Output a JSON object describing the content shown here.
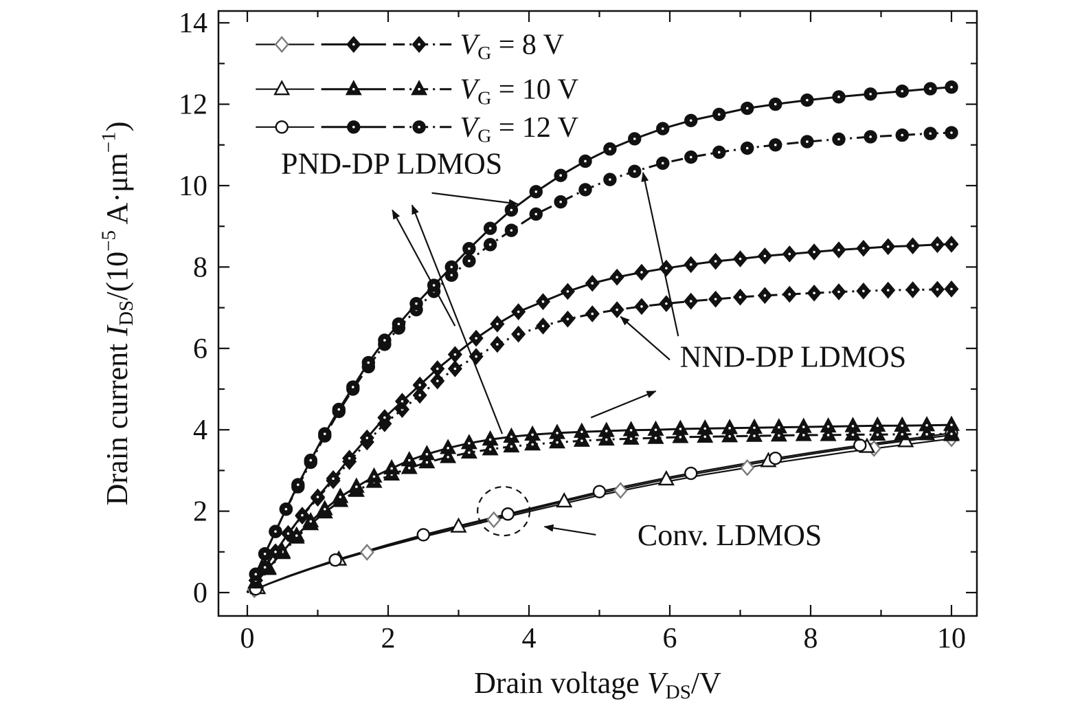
{
  "chart_data": {
    "type": "line",
    "title": "",
    "xlabel": "Drain voltage VDS/V",
    "ylabel": "Drain current IDS/(10^-5 A·um^-1)",
    "xlabel_rich": [
      {
        "t": "Drain voltage "
      },
      {
        "t": "V",
        "i": 1
      },
      {
        "t": "DS",
        "sub": 1
      },
      {
        "t": "/V"
      }
    ],
    "ylabel_rich": [
      {
        "t": "Drain current "
      },
      {
        "t": "I",
        "i": 1
      },
      {
        "t": "DS",
        "sub": 1
      },
      {
        "t": "/(10"
      },
      {
        "t": "−5",
        "sup": 1
      },
      {
        "t": " A·μm"
      },
      {
        "t": "−1",
        "sup": 1
      },
      {
        "t": ")"
      }
    ],
    "xlim": [
      0,
      10
    ],
    "ylim": [
      0,
      14
    ],
    "grid": false,
    "xticks": {
      "major": [
        0,
        2,
        4,
        6,
        8,
        10
      ],
      "minor": [
        1,
        3,
        5,
        7,
        9
      ]
    },
    "yticks": {
      "major": [
        0,
        2,
        4,
        6,
        8,
        10,
        12,
        14
      ],
      "minor": [
        1,
        3,
        5,
        7,
        9,
        11,
        13
      ]
    },
    "colors": {
      "curve": "#111111",
      "conv_diamond_open": "#7a7a7a",
      "background": "#ffffff"
    },
    "legend": {
      "position": "top-left",
      "rows": [
        {
          "marker": "diamond",
          "vg": 8,
          "open_color": "#7a7a7a",
          "label": [
            {
              "t": "V",
              "i": 1
            },
            {
              "t": "G",
              "sub": 1
            },
            {
              "t": " = 8 V"
            }
          ]
        },
        {
          "marker": "triangle",
          "vg": 10,
          "open_color": "#111111",
          "label": [
            {
              "t": "V",
              "i": 1
            },
            {
              "t": "G",
              "sub": 1
            },
            {
              "t": " = 10 V"
            }
          ]
        },
        {
          "marker": "circle",
          "vg": 12,
          "open_color": "#111111",
          "label": [
            {
              "t": "V",
              "i": 1
            },
            {
              "t": "G",
              "sub": 1
            },
            {
              "t": " = 12 V"
            }
          ]
        }
      ]
    },
    "series": [
      {
        "id": "conv-vg8",
        "device": "Conv. LDMOS",
        "vg": 8,
        "line": "thin",
        "marker": "diamond",
        "marker_fill": "open",
        "color": "#7a7a7a",
        "x": [
          0,
          0.3,
          0.6,
          0.9,
          1.25,
          1.6,
          2,
          2.5,
          3,
          3.5,
          4,
          4.5,
          5,
          5.5,
          6,
          6.5,
          7,
          7.5,
          8,
          8.5,
          9,
          9.5,
          10
        ],
        "y": [
          0,
          0.21,
          0.4,
          0.58,
          0.77,
          0.95,
          1.14,
          1.37,
          1.58,
          1.79,
          1.99,
          2.19,
          2.39,
          2.57,
          2.74,
          2.9,
          3.04,
          3.19,
          3.32,
          3.45,
          3.56,
          3.67,
          3.78
        ],
        "marker_x": [
          0.1,
          1.7,
          3.5,
          5.3,
          7.1,
          8.9,
          10
        ],
        "marker_y": [
          0.07,
          0.99,
          1.79,
          2.51,
          3.07,
          3.54,
          3.78
        ]
      },
      {
        "id": "conv-vg10",
        "device": "Conv. LDMOS",
        "vg": 10,
        "line": "thin",
        "marker": "triangle",
        "marker_fill": "open",
        "color": "#111111",
        "x": [
          0,
          0.3,
          0.6,
          0.9,
          1.25,
          1.6,
          2,
          2.5,
          3,
          3.5,
          4,
          4.5,
          5,
          5.5,
          6,
          6.5,
          7,
          7.5,
          8,
          8.5,
          9,
          9.5,
          10
        ],
        "y": [
          0,
          0.21,
          0.41,
          0.59,
          0.79,
          0.97,
          1.16,
          1.4,
          1.62,
          1.83,
          2.03,
          2.24,
          2.44,
          2.62,
          2.8,
          2.96,
          3.11,
          3.26,
          3.4,
          3.53,
          3.65,
          3.76,
          3.87
        ],
        "marker_x": [
          0.15,
          1.3,
          3.0,
          4.5,
          5.95,
          7.4,
          8.8,
          9.35,
          10
        ],
        "marker_y": [
          0.11,
          0.81,
          1.62,
          2.24,
          2.78,
          3.23,
          3.58,
          3.72,
          3.87
        ]
      },
      {
        "id": "conv-vg12",
        "device": "Conv. LDMOS",
        "vg": 12,
        "line": "thin",
        "marker": "circle",
        "marker_fill": "open",
        "color": "#111111",
        "x": [
          0,
          0.3,
          0.6,
          0.9,
          1.25,
          1.6,
          2,
          2.5,
          3,
          3.5,
          4,
          4.5,
          5,
          5.5,
          6,
          6.5,
          7,
          7.5,
          8,
          8.5,
          9,
          9.5,
          10
        ],
        "y": [
          0,
          0.22,
          0.42,
          0.6,
          0.8,
          0.98,
          1.18,
          1.42,
          1.64,
          1.85,
          2.06,
          2.27,
          2.48,
          2.66,
          2.84,
          3.0,
          3.15,
          3.3,
          3.44,
          3.57,
          3.69,
          3.8,
          3.92
        ],
        "marker_x": [
          0.12,
          1.25,
          2.5,
          3.7,
          5.0,
          6.3,
          7.5,
          8.7,
          10
        ],
        "marker_y": [
          0.09,
          0.8,
          1.42,
          1.93,
          2.48,
          2.93,
          3.3,
          3.62,
          3.92
        ]
      },
      {
        "id": "nnd-vg10",
        "device": "NND-DP LDMOS",
        "vg": 10,
        "line": "dashdot",
        "marker": "triangle",
        "marker_fill": "filled",
        "color": "#111111",
        "x": [
          0,
          0.12,
          0.3,
          0.5,
          0.7,
          0.9,
          1.1,
          1.32,
          1.55,
          1.8,
          2.05,
          2.3,
          2.55,
          2.85,
          3.15,
          3.45,
          3.75,
          4.05,
          4.4,
          4.75,
          5.1,
          5.45,
          5.8,
          6.15,
          6.5,
          6.85,
          7.2,
          7.55,
          7.9,
          8.25,
          8.6,
          8.95,
          9.3,
          9.65,
          10
        ],
        "y": [
          0,
          0.25,
          0.58,
          0.97,
          1.35,
          1.68,
          1.97,
          2.25,
          2.5,
          2.72,
          2.9,
          3.06,
          3.2,
          3.33,
          3.44,
          3.52,
          3.59,
          3.64,
          3.69,
          3.73,
          3.76,
          3.78,
          3.8,
          3.82,
          3.83,
          3.84,
          3.85,
          3.86,
          3.87,
          3.87,
          3.88,
          3.88,
          3.89,
          3.89,
          3.9
        ]
      },
      {
        "id": "pnd-vg10",
        "device": "PND-DP LDMOS",
        "vg": 10,
        "line": "solid",
        "marker": "triangle",
        "marker_fill": "filled",
        "color": "#111111",
        "x": [
          0,
          0.12,
          0.3,
          0.5,
          0.7,
          0.9,
          1.1,
          1.32,
          1.55,
          1.8,
          2.05,
          2.3,
          2.55,
          2.85,
          3.15,
          3.45,
          3.75,
          4.05,
          4.4,
          4.75,
          5.1,
          5.45,
          5.8,
          6.15,
          6.5,
          6.85,
          7.2,
          7.55,
          7.9,
          8.25,
          8.6,
          8.95,
          9.3,
          9.65,
          10
        ],
        "y": [
          0,
          0.25,
          0.6,
          1.0,
          1.4,
          1.75,
          2.05,
          2.35,
          2.6,
          2.85,
          3.05,
          3.25,
          3.4,
          3.55,
          3.67,
          3.76,
          3.83,
          3.88,
          3.92,
          3.95,
          3.97,
          3.99,
          4.0,
          4.02,
          4.03,
          4.04,
          4.05,
          4.06,
          4.07,
          4.08,
          4.09,
          4.1,
          4.1,
          4.11,
          4.12
        ]
      },
      {
        "id": "nnd-vg8",
        "device": "NND-DP LDMOS",
        "vg": 8,
        "line": "dashdot",
        "marker": "diamond",
        "marker_fill": "filled",
        "color": "#111111",
        "x": [
          0,
          0.12,
          0.25,
          0.4,
          0.58,
          0.78,
          1.0,
          1.22,
          1.45,
          1.7,
          1.95,
          2.2,
          2.45,
          2.7,
          2.95,
          3.25,
          3.55,
          3.85,
          4.2,
          4.55,
          4.9,
          5.25,
          5.6,
          5.95,
          6.3,
          6.65,
          7.0,
          7.35,
          7.7,
          8.05,
          8.4,
          8.75,
          9.1,
          9.45,
          9.8,
          10
        ],
        "y": [
          0,
          0.3,
          0.62,
          1.0,
          1.45,
          1.88,
          2.32,
          2.75,
          3.22,
          3.7,
          4.15,
          4.5,
          4.85,
          5.2,
          5.5,
          5.8,
          6.1,
          6.35,
          6.55,
          6.72,
          6.85,
          6.95,
          7.03,
          7.1,
          7.16,
          7.21,
          7.26,
          7.3,
          7.33,
          7.36,
          7.39,
          7.41,
          7.43,
          7.44,
          7.45,
          7.46
        ]
      },
      {
        "id": "pnd-vg8",
        "device": "PND-DP LDMOS",
        "vg": 8,
        "line": "solid",
        "marker": "diamond",
        "marker_fill": "filled",
        "color": "#111111",
        "x": [
          0,
          0.12,
          0.25,
          0.4,
          0.58,
          0.78,
          1.0,
          1.22,
          1.45,
          1.7,
          1.95,
          2.2,
          2.45,
          2.7,
          2.95,
          3.25,
          3.55,
          3.85,
          4.2,
          4.55,
          4.9,
          5.25,
          5.6,
          5.95,
          6.3,
          6.65,
          7.0,
          7.35,
          7.7,
          8.05,
          8.4,
          8.75,
          9.1,
          9.45,
          9.8,
          10
        ],
        "y": [
          0,
          0.3,
          0.62,
          1.0,
          1.45,
          1.9,
          2.35,
          2.8,
          3.3,
          3.8,
          4.3,
          4.7,
          5.1,
          5.5,
          5.85,
          6.25,
          6.6,
          6.9,
          7.15,
          7.4,
          7.6,
          7.75,
          7.87,
          7.97,
          8.06,
          8.14,
          8.2,
          8.27,
          8.32,
          8.37,
          8.42,
          8.46,
          8.5,
          8.52,
          8.55,
          8.56
        ]
      },
      {
        "id": "nnd-vg12",
        "device": "NND-DP LDMOS",
        "vg": 12,
        "line": "dashdot",
        "marker": "circle",
        "marker_fill": "filled",
        "color": "#111111",
        "x": [
          0,
          0.12,
          0.25,
          0.4,
          0.55,
          0.72,
          0.9,
          1.1,
          1.3,
          1.5,
          1.72,
          1.95,
          2.15,
          2.4,
          2.65,
          2.9,
          3.15,
          3.45,
          3.75,
          4.1,
          4.45,
          4.8,
          5.15,
          5.5,
          5.9,
          6.3,
          6.7,
          7.1,
          7.5,
          7.95,
          8.4,
          8.85,
          9.3,
          9.7,
          10
        ],
        "y": [
          0,
          0.45,
          0.95,
          1.5,
          2.05,
          2.6,
          3.2,
          3.85,
          4.45,
          5.0,
          5.55,
          6.1,
          6.5,
          6.95,
          7.4,
          7.8,
          8.15,
          8.55,
          8.9,
          9.3,
          9.6,
          9.9,
          10.15,
          10.35,
          10.55,
          10.7,
          10.82,
          10.92,
          11.0,
          11.08,
          11.14,
          11.2,
          11.24,
          11.28,
          11.3
        ]
      },
      {
        "id": "pnd-vg12",
        "device": "PND-DP LDMOS",
        "vg": 12,
        "line": "solid",
        "marker": "circle",
        "marker_fill": "filled",
        "color": "#111111",
        "x": [
          0,
          0.12,
          0.25,
          0.4,
          0.55,
          0.72,
          0.9,
          1.1,
          1.3,
          1.5,
          1.72,
          1.95,
          2.15,
          2.4,
          2.65,
          2.9,
          3.15,
          3.45,
          3.75,
          4.1,
          4.45,
          4.8,
          5.15,
          5.5,
          5.9,
          6.3,
          6.7,
          7.1,
          7.5,
          7.95,
          8.4,
          8.85,
          9.3,
          9.7,
          10
        ],
        "y": [
          0,
          0.45,
          0.95,
          1.5,
          2.05,
          2.65,
          3.25,
          3.9,
          4.5,
          5.05,
          5.65,
          6.2,
          6.6,
          7.1,
          7.55,
          8.0,
          8.45,
          8.95,
          9.4,
          9.85,
          10.25,
          10.6,
          10.9,
          11.15,
          11.4,
          11.6,
          11.75,
          11.9,
          12.0,
          12.1,
          12.18,
          12.25,
          12.32,
          12.38,
          12.42
        ]
      }
    ],
    "annotations": [
      {
        "id": "pnd-label",
        "text": "PND-DP LDMOS",
        "x": 2.05,
        "y": 10.55,
        "arrows": [
          [
            2.62,
            9.82,
            3.84,
            9.55
          ],
          [
            2.95,
            6.55,
            2.06,
            9.4
          ],
          [
            3.62,
            3.9,
            2.34,
            9.52
          ]
        ]
      },
      {
        "id": "nnd-label",
        "text": "NND-DP LDMOS",
        "x": 7.75,
        "y": 5.8,
        "arrows": [
          [
            6.12,
            6.3,
            5.62,
            10.32
          ],
          [
            6.0,
            5.72,
            5.3,
            6.78
          ],
          [
            4.88,
            4.3,
            5.8,
            4.95
          ]
        ]
      },
      {
        "id": "conv-label",
        "text": "Conv. LDMOS",
        "x": 6.85,
        "y": 1.42,
        "arrows": [
          [
            4.95,
            1.42,
            4.22,
            1.62
          ]
        ],
        "ellipse": {
          "cx": 3.64,
          "cy": 2.0,
          "rx": 0.37,
          "ry": 0.6
        }
      }
    ]
  }
}
